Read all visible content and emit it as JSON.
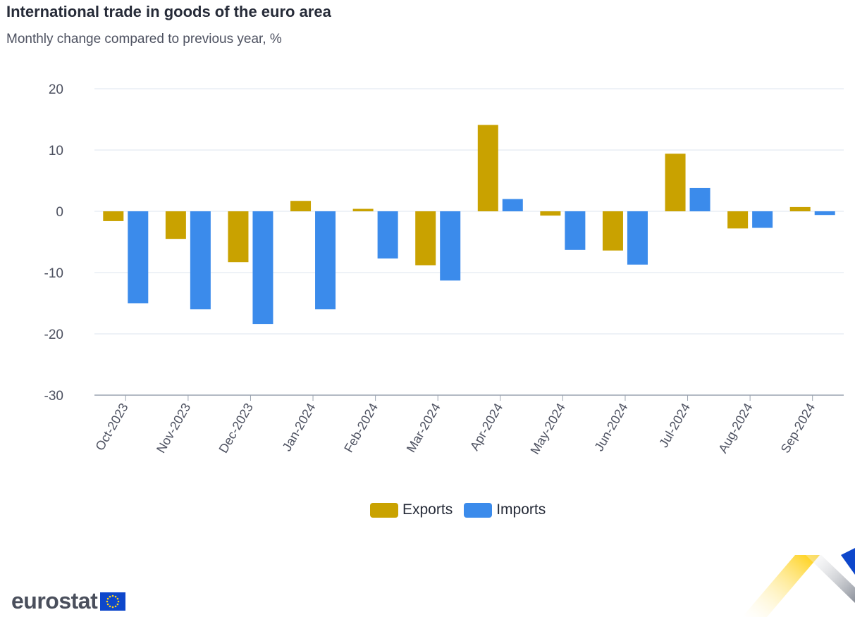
{
  "title": "International trade in goods of the euro area",
  "subtitle": "Monthly change compared to previous year, %",
  "colors": {
    "exports": "#c9a200",
    "imports": "#3b8beb",
    "grid": "#dde6ef",
    "axis": "#9aa3b0"
  },
  "legend": {
    "exports_label": "Exports",
    "imports_label": "Imports"
  },
  "logo": {
    "text": "eurostat"
  },
  "chart_data": {
    "type": "bar",
    "title": "International trade in goods of the euro area",
    "subtitle": "Monthly change compared to previous year, %",
    "xlabel": "",
    "ylabel": "",
    "categories": [
      "Oct-2023",
      "Nov-2023",
      "Dec-2023",
      "Jan-2024",
      "Feb-2024",
      "Mar-2024",
      "Apr-2024",
      "May-2024",
      "Jun-2024",
      "Jul-2024",
      "Aug-2024",
      "Sep-2024"
    ],
    "series": [
      {
        "name": "Exports",
        "values": [
          -1.6,
          -4.5,
          -8.3,
          1.7,
          0.4,
          -8.8,
          14.1,
          -0.7,
          -6.4,
          9.4,
          -2.8,
          0.7
        ]
      },
      {
        "name": "Imports",
        "values": [
          -15.0,
          -16.0,
          -18.4,
          -16.0,
          -7.7,
          -11.3,
          2.0,
          -6.3,
          -8.7,
          3.8,
          -2.7,
          -0.6
        ]
      }
    ],
    "ylim": [
      -30,
      20
    ],
    "yticks": [
      -30,
      -20,
      -10,
      0,
      10,
      20
    ],
    "grid": true,
    "legend_position": "bottom-center"
  }
}
